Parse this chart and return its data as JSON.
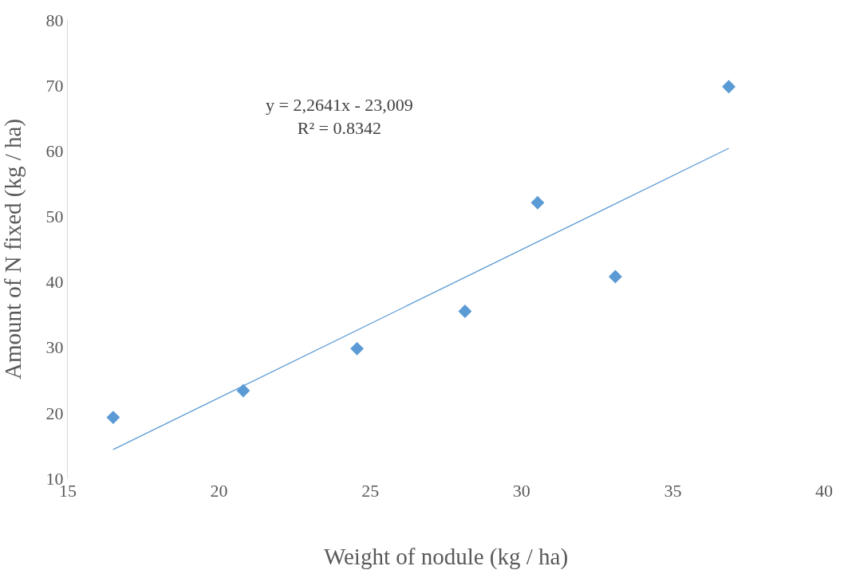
{
  "chart_data": {
    "type": "scatter",
    "xlabel": "Weight of nodule (kg / ha)",
    "ylabel": "Amount of N fixed (kg / ha)",
    "annotations": [
      "y = 2,2641x - 23,009\nR² = 0.8342"
    ],
    "xlim": [
      15,
      40
    ],
    "xticks": [
      15,
      20,
      25,
      30,
      35,
      40
    ],
    "ylim": [
      10,
      80
    ],
    "yticks": [
      10,
      20,
      30,
      40,
      50,
      60,
      70,
      80
    ],
    "marker": "diamond",
    "series": [
      {
        "color": "#5b9bd5",
        "x": [
          16.5,
          20.8,
          24.56,
          28.13,
          30.53,
          33.1,
          36.85
        ],
        "values": [
          19.3,
          23.4,
          29.8,
          35.5,
          52.1,
          40.8,
          69.8
        ]
      },
      {
        "type": "line",
        "marker": "none",
        "color": "#5b9bd5",
        "x": [
          16.5,
          36.85
        ],
        "values": [
          14.4,
          60.4
        ]
      }
    ]
  }
}
